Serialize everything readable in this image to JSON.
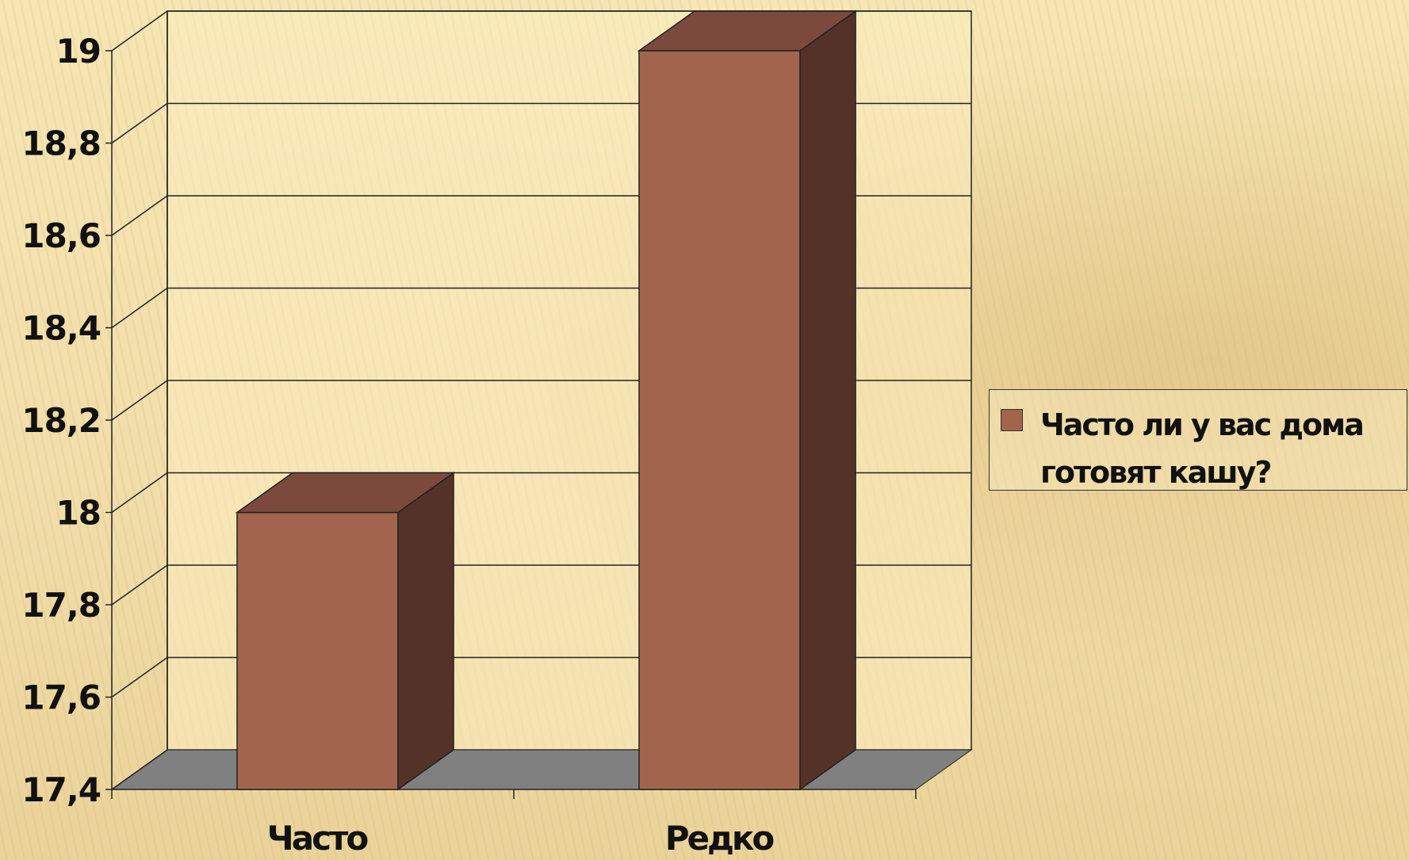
{
  "chart_data": {
    "type": "bar",
    "categories": [
      "Часто",
      "Редко"
    ],
    "series": [
      {
        "name": "Часто ли у вас дома готовят кашу?",
        "values": [
          18,
          19
        ]
      }
    ],
    "yticks": [
      "17,4",
      "17,6",
      "17,8",
      "18",
      "18,2",
      "18,4",
      "18,6",
      "18,8",
      "19"
    ],
    "ylim": [
      17.4,
      19
    ],
    "grid": true,
    "legend_position": "right",
    "colors": {
      "bar_front": "#a3644e",
      "bar_top": "#7b4a3c",
      "bar_side": "#553228",
      "floor": "#808080"
    }
  }
}
